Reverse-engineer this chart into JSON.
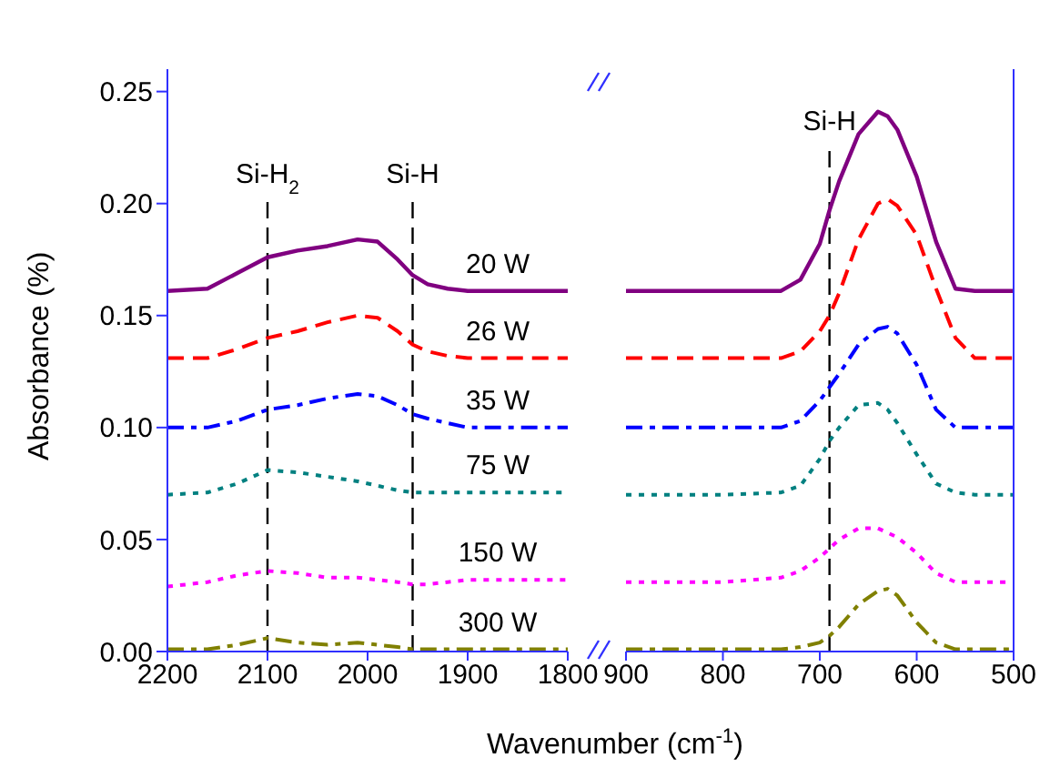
{
  "chart_data": [
    {
      "type": "line",
      "ylabel": "Absorbance (%)",
      "xlabel": "Wavenumber (cm$^{-1}$)",
      "xlim": [
        2200,
        1800
      ],
      "xticks": [
        2200,
        2100,
        2000,
        1900,
        1800
      ],
      "ylim": [
        0,
        0.26
      ],
      "yticks": [
        {
          "value": 0,
          "label": "0.00"
        },
        {
          "value": 0.05,
          "label": "0.05"
        },
        {
          "value": 0.1,
          "label": "0.10"
        },
        {
          "value": 0.15,
          "label": "0.15"
        },
        {
          "value": 0.2,
          "label": "0.20"
        },
        {
          "value": 0.25,
          "label": "0.25"
        }
      ],
      "marker": "none",
      "x": [
        2200,
        2160,
        2130,
        2100,
        2070,
        2040,
        2010,
        1990,
        1970,
        1955,
        1940,
        1920,
        1900,
        1870,
        1850,
        1800
      ],
      "series": [
        {
          "name": "20 W",
          "color": "#800080",
          "line_style": "solid",
          "values": [
            0.161,
            0.162,
            0.169,
            0.176,
            0.179,
            0.181,
            0.184,
            0.183,
            0.175,
            0.168,
            0.164,
            0.162,
            0.161,
            0.161,
            0.161,
            0.161
          ]
        },
        {
          "name": "26 W",
          "color": "#ff0000",
          "line_style": "dashed",
          "values": [
            0.131,
            0.131,
            0.135,
            0.14,
            0.143,
            0.147,
            0.15,
            0.149,
            0.143,
            0.137,
            0.134,
            0.132,
            0.131,
            0.131,
            0.131,
            0.131
          ]
        },
        {
          "name": "35 W",
          "color": "#0000ff",
          "line_style": "dashdot",
          "values": [
            0.1,
            0.1,
            0.103,
            0.108,
            0.11,
            0.113,
            0.115,
            0.114,
            0.11,
            0.106,
            0.104,
            0.102,
            0.1,
            0.1,
            0.1,
            0.1
          ]
        },
        {
          "name": "75 W",
          "color": "#008080",
          "line_style": "dotted",
          "values": [
            0.07,
            0.071,
            0.075,
            0.081,
            0.08,
            0.078,
            0.076,
            0.074,
            0.072,
            0.071,
            0.071,
            0.071,
            0.071,
            0.071,
            0.071,
            0.071
          ]
        },
        {
          "name": "150 W",
          "color": "#ff00ff",
          "line_style": "dotted",
          "values": [
            0.029,
            0.031,
            0.034,
            0.036,
            0.035,
            0.033,
            0.033,
            0.032,
            0.031,
            0.03,
            0.03,
            0.031,
            0.032,
            0.032,
            0.032,
            0.032
          ]
        },
        {
          "name": "300 W",
          "color": "#808000",
          "line_style": "dashdot",
          "values": [
            0.001,
            0.001,
            0.003,
            0.006,
            0.004,
            0.003,
            0.004,
            0.003,
            0.002,
            0.001,
            0.001,
            0.001,
            0.001,
            0.001,
            0.001,
            0.001
          ]
        }
      ],
      "ref_lines": [
        {
          "axis": "x",
          "value": 2100,
          "label": "Si-H$_{2}$",
          "color": "#000000",
          "line_style": "dashed"
        },
        {
          "axis": "x",
          "value": 1955,
          "label": "Si-H",
          "color": "#000000",
          "line_style": "dashed"
        }
      ]
    },
    {
      "type": "line",
      "xlim": [
        900,
        500
      ],
      "xticks": [
        900,
        800,
        700,
        600,
        500
      ],
      "ylim": [
        0,
        0.26
      ],
      "tick_labels": "x",
      "marker": "none",
      "x": [
        900,
        800,
        740,
        720,
        700,
        690,
        680,
        660,
        640,
        630,
        620,
        600,
        580,
        560,
        540,
        520,
        500
      ],
      "series": [
        {
          "color": "#800080",
          "line_style": "solid",
          "values": [
            0.161,
            0.161,
            0.161,
            0.166,
            0.182,
            0.197,
            0.21,
            0.231,
            0.241,
            0.239,
            0.233,
            0.212,
            0.183,
            0.162,
            0.161,
            0.161,
            0.161
          ]
        },
        {
          "color": "#ff0000",
          "line_style": "dashed",
          "values": [
            0.131,
            0.131,
            0.131,
            0.134,
            0.143,
            0.15,
            0.16,
            0.184,
            0.2,
            0.202,
            0.199,
            0.186,
            0.162,
            0.14,
            0.131,
            0.131,
            0.131
          ]
        },
        {
          "color": "#0000ff",
          "line_style": "dashdot",
          "values": [
            0.1,
            0.1,
            0.1,
            0.103,
            0.112,
            0.118,
            0.124,
            0.137,
            0.144,
            0.145,
            0.142,
            0.128,
            0.108,
            0.1,
            0.1,
            0.1,
            0.1
          ]
        },
        {
          "color": "#008080",
          "line_style": "dotted",
          "values": [
            0.07,
            0.07,
            0.071,
            0.074,
            0.086,
            0.094,
            0.1,
            0.11,
            0.111,
            0.108,
            0.102,
            0.088,
            0.075,
            0.071,
            0.07,
            0.07,
            0.07
          ]
        },
        {
          "color": "#ff00ff",
          "line_style": "dotted",
          "values": [
            0.031,
            0.031,
            0.033,
            0.036,
            0.042,
            0.046,
            0.05,
            0.055,
            0.055,
            0.053,
            0.051,
            0.044,
            0.035,
            0.031,
            0.031,
            0.031,
            0.031
          ]
        },
        {
          "color": "#808000",
          "line_style": "dashdot",
          "values": [
            0.001,
            0.001,
            0.001,
            0.002,
            0.004,
            0.007,
            0.011,
            0.021,
            0.027,
            0.028,
            0.025,
            0.013,
            0.004,
            0.001,
            0.001,
            0.001,
            0.001
          ]
        }
      ],
      "ref_lines": [
        {
          "axis": "x",
          "value": 690,
          "label": "Si-H",
          "color": "#000000",
          "line_style": "dashed"
        }
      ]
    }
  ]
}
